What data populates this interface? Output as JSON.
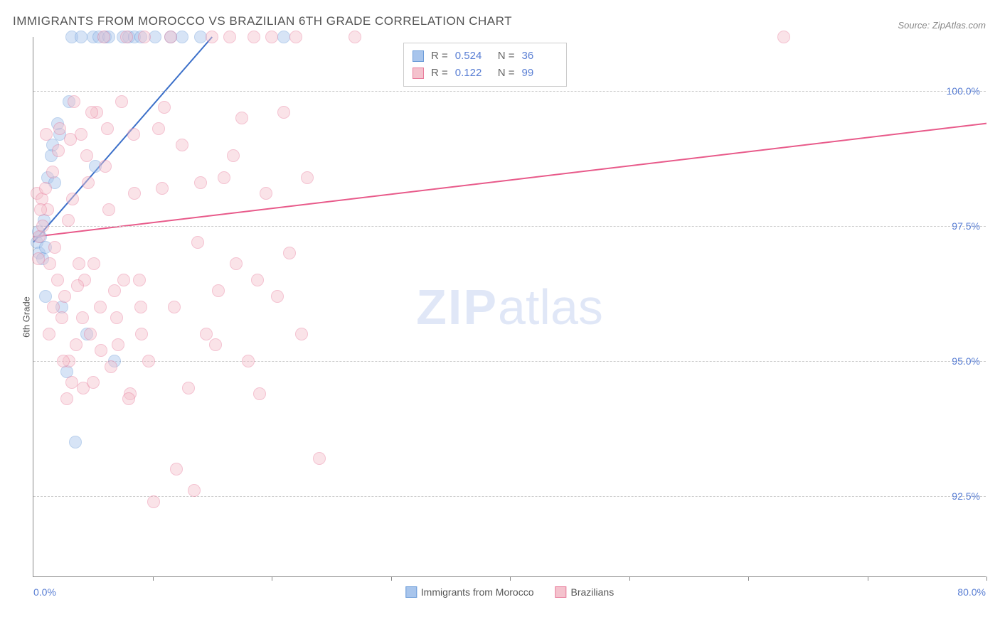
{
  "title": "IMMIGRANTS FROM MOROCCO VS BRAZILIAN 6TH GRADE CORRELATION CHART",
  "source": "Source: ZipAtlas.com",
  "ylabel": "6th Grade",
  "watermark_bold": "ZIP",
  "watermark_light": "atlas",
  "chart": {
    "type": "scatter",
    "xlim": [
      0,
      80
    ],
    "ylim": [
      91,
      101
    ],
    "x_axis_labels": {
      "left": "0.0%",
      "right": "80.0%"
    },
    "x_tick_positions": [
      10,
      20,
      30,
      40,
      50,
      60,
      70,
      80
    ],
    "y_gridlines": [
      92.5,
      95.0,
      97.5,
      100.0
    ],
    "y_tick_labels": [
      "92.5%",
      "95.0%",
      "97.5%",
      "100.0%"
    ],
    "background_color": "#ffffff",
    "grid_color": "#cccccc",
    "axis_color": "#888888",
    "tick_label_color": "#5a7fd4",
    "marker_radius": 9,
    "marker_opacity": 0.45,
    "line_width": 2
  },
  "series": [
    {
      "name": "Immigrants from Morocco",
      "color_fill": "#a8c5ec",
      "color_stroke": "#6a9bd8",
      "line_color": "#3b6fc9",
      "R": "0.524",
      "N": "36",
      "trend": {
        "x1": 0,
        "y1": 97.2,
        "x2": 15,
        "y2": 101
      },
      "points": [
        [
          0.3,
          97.2
        ],
        [
          0.5,
          97.0
        ],
        [
          0.6,
          97.3
        ],
        [
          0.8,
          96.9
        ],
        [
          1.0,
          97.1
        ],
        [
          1.2,
          98.4
        ],
        [
          1.5,
          98.8
        ],
        [
          1.6,
          99.0
        ],
        [
          1.8,
          98.3
        ],
        [
          2.0,
          99.4
        ],
        [
          2.2,
          99.2
        ],
        [
          2.4,
          96.0
        ],
        [
          2.8,
          94.8
        ],
        [
          3.0,
          99.8
        ],
        [
          3.2,
          101
        ],
        [
          3.5,
          93.5
        ],
        [
          4.0,
          101
        ],
        [
          4.5,
          95.5
        ],
        [
          5.0,
          101
        ],
        [
          5.5,
          101
        ],
        [
          6.0,
          101
        ],
        [
          6.3,
          101
        ],
        [
          6.8,
          95.0
        ],
        [
          7.5,
          101
        ],
        [
          8.0,
          101
        ],
        [
          8.5,
          101
        ],
        [
          9.0,
          101
        ],
        [
          10.2,
          101
        ],
        [
          11.5,
          101
        ],
        [
          12.5,
          101
        ],
        [
          14.0,
          101
        ],
        [
          5.2,
          98.6
        ],
        [
          1.0,
          96.2
        ],
        [
          0.4,
          97.4
        ],
        [
          0.9,
          97.6
        ],
        [
          21.0,
          101
        ]
      ]
    },
    {
      "name": "Brazilians",
      "color_fill": "#f4c2cd",
      "color_stroke": "#e87a9a",
      "line_color": "#e85a8a",
      "R": "0.122",
      "N": "99",
      "trend": {
        "x1": 0,
        "y1": 97.3,
        "x2": 80,
        "y2": 99.4
      },
      "points": [
        [
          0.3,
          98.1
        ],
        [
          0.5,
          97.3
        ],
        [
          0.7,
          98.0
        ],
        [
          0.8,
          97.5
        ],
        [
          1.0,
          98.2
        ],
        [
          1.2,
          97.8
        ],
        [
          1.4,
          96.8
        ],
        [
          1.6,
          98.5
        ],
        [
          1.8,
          97.1
        ],
        [
          2.0,
          96.5
        ],
        [
          2.2,
          99.3
        ],
        [
          2.4,
          95.8
        ],
        [
          2.6,
          96.2
        ],
        [
          2.8,
          94.3
        ],
        [
          3.0,
          95.0
        ],
        [
          3.2,
          94.6
        ],
        [
          3.4,
          99.8
        ],
        [
          3.6,
          95.3
        ],
        [
          3.8,
          96.8
        ],
        [
          4.0,
          99.2
        ],
        [
          4.2,
          94.5
        ],
        [
          4.5,
          98.8
        ],
        [
          4.8,
          95.5
        ],
        [
          5.0,
          94.6
        ],
        [
          5.3,
          99.6
        ],
        [
          5.6,
          96.0
        ],
        [
          5.9,
          101
        ],
        [
          6.2,
          99.3
        ],
        [
          6.5,
          94.9
        ],
        [
          6.8,
          96.3
        ],
        [
          7.1,
          95.3
        ],
        [
          7.4,
          99.8
        ],
        [
          7.8,
          101
        ],
        [
          8.1,
          94.4
        ],
        [
          8.5,
          98.1
        ],
        [
          8.9,
          96.5
        ],
        [
          9.3,
          101
        ],
        [
          9.7,
          95.0
        ],
        [
          10.1,
          92.4
        ],
        [
          10.5,
          99.3
        ],
        [
          11.0,
          99.7
        ],
        [
          11.5,
          101
        ],
        [
          12.0,
          93.0
        ],
        [
          12.5,
          99.0
        ],
        [
          13.0,
          94.5
        ],
        [
          13.5,
          92.6
        ],
        [
          14.0,
          98.3
        ],
        [
          14.5,
          95.5
        ],
        [
          15.0,
          101
        ],
        [
          15.5,
          96.3
        ],
        [
          16.0,
          98.4
        ],
        [
          16.5,
          101
        ],
        [
          17.0,
          96.8
        ],
        [
          17.5,
          99.5
        ],
        [
          18.0,
          95.0
        ],
        [
          18.5,
          101
        ],
        [
          19.0,
          94.4
        ],
        [
          19.5,
          98.1
        ],
        [
          20.0,
          101
        ],
        [
          20.5,
          96.2
        ],
        [
          21.0,
          99.6
        ],
        [
          21.5,
          97.0
        ],
        [
          22.0,
          101
        ],
        [
          22.5,
          95.5
        ],
        [
          23.0,
          98.4
        ],
        [
          8.0,
          94.3
        ],
        [
          9.0,
          96.0
        ],
        [
          3.1,
          99.1
        ],
        [
          4.3,
          96.5
        ],
        [
          27.0,
          101
        ],
        [
          6.0,
          98.6
        ],
        [
          2.9,
          97.6
        ],
        [
          1.1,
          99.2
        ],
        [
          0.4,
          96.9
        ],
        [
          0.6,
          97.8
        ],
        [
          1.3,
          95.5
        ],
        [
          1.7,
          96.0
        ],
        [
          2.1,
          98.9
        ],
        [
          2.5,
          95.0
        ],
        [
          24.0,
          93.2
        ],
        [
          3.3,
          98.0
        ],
        [
          3.7,
          96.4
        ],
        [
          4.1,
          95.8
        ],
        [
          4.6,
          98.3
        ],
        [
          5.1,
          96.8
        ],
        [
          5.7,
          95.2
        ],
        [
          6.3,
          97.8
        ],
        [
          7.0,
          95.8
        ],
        [
          7.6,
          96.5
        ],
        [
          8.4,
          99.2
        ],
        [
          9.1,
          95.5
        ],
        [
          10.8,
          98.2
        ],
        [
          11.8,
          96.0
        ],
        [
          63.0,
          101
        ],
        [
          13.8,
          97.2
        ],
        [
          15.3,
          95.3
        ],
        [
          16.8,
          98.8
        ],
        [
          18.8,
          96.5
        ],
        [
          4.9,
          99.6
        ]
      ]
    }
  ],
  "legend": {
    "label_R": "R =",
    "label_N": "N ="
  }
}
